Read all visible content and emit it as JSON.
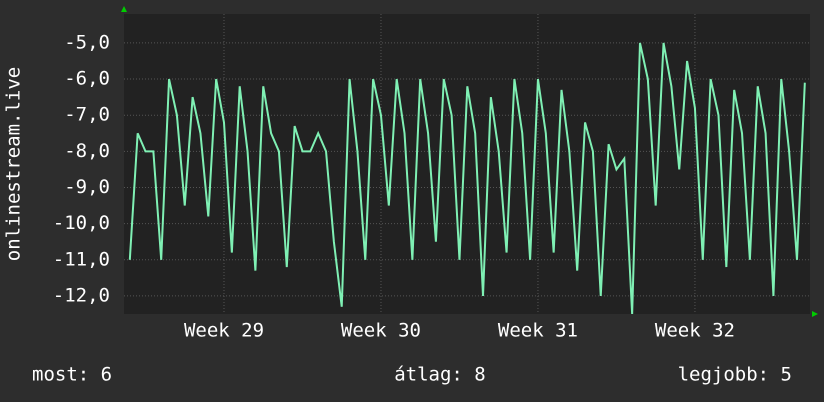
{
  "chart_data": {
    "type": "line",
    "ylabel": "onlinestream.live",
    "x": [
      28.4,
      28.45,
      28.5,
      28.55,
      28.6,
      28.65,
      28.7,
      28.75,
      28.8,
      28.85,
      28.9,
      28.95,
      29.0,
      29.05,
      29.1,
      29.15,
      29.2,
      29.25,
      29.3,
      29.35,
      29.4,
      29.45,
      29.5,
      29.55,
      29.6,
      29.65,
      29.7,
      29.75,
      29.8,
      29.85,
      29.9,
      29.95,
      30.0,
      30.05,
      30.1,
      30.15,
      30.2,
      30.25,
      30.3,
      30.35,
      30.4,
      30.45,
      30.5,
      30.55,
      30.6,
      30.65,
      30.7,
      30.75,
      30.8,
      30.85,
      30.9,
      30.95,
      31.0,
      31.05,
      31.1,
      31.15,
      31.2,
      31.25,
      31.3,
      31.35,
      31.4,
      31.45,
      31.5,
      31.55,
      31.6,
      31.65,
      31.7,
      31.75,
      31.8,
      31.85,
      31.9,
      31.95,
      32.0,
      32.05,
      32.1,
      32.15,
      32.2,
      32.25,
      32.3,
      32.35,
      32.4,
      32.45,
      32.5,
      32.55,
      32.6,
      32.65,
      32.7
    ],
    "series": [
      {
        "color": "#7ff0b4",
        "values": [
          -11,
          -7.5,
          -8,
          -8,
          -11,
          -6,
          -7,
          -9.5,
          -6.5,
          -7.5,
          -9.8,
          -6,
          -7.2,
          -10.8,
          -6.2,
          -8,
          -11.3,
          -6.2,
          -7.5,
          -8,
          -11.2,
          -7.3,
          -8,
          -8,
          -7.5,
          -8,
          -10.5,
          -12.3,
          -6,
          -8,
          -11,
          -6,
          -7,
          -9.5,
          -6,
          -7.5,
          -11,
          -6,
          -7.5,
          -10.5,
          -6,
          -7,
          -11,
          -6.2,
          -7.5,
          -12,
          -6.5,
          -8,
          -10.8,
          -6,
          -7.5,
          -11,
          -6,
          -7.5,
          -10.8,
          -6.3,
          -8,
          -11.3,
          -7.2,
          -8,
          -12,
          -7.8,
          -8.5,
          -8.2,
          -12.5,
          -5,
          -6,
          -9.5,
          -5,
          -6.2,
          -8.5,
          -5.5,
          -6.8,
          -11,
          -6,
          -7,
          -11.2,
          -6.3,
          -7.5,
          -11,
          -6.2,
          -7.5,
          -12,
          -6,
          -8,
          -11,
          -6.1
        ]
      }
    ],
    "xlim": [
      28.363,
      32.733
    ],
    "xticks": [
      {
        "value": 29,
        "label": "Week 29"
      },
      {
        "value": 30,
        "label": "Week 30"
      },
      {
        "value": 31,
        "label": "Week 31"
      },
      {
        "value": 32,
        "label": "Week 32"
      }
    ],
    "ylim": [
      -12.5,
      -4.2
    ],
    "yticks": [
      {
        "value": -5,
        "label": "-5,0"
      },
      {
        "value": -6,
        "label": "-6,0"
      },
      {
        "value": -7,
        "label": "-7,0"
      },
      {
        "value": -8,
        "label": "-8,0"
      },
      {
        "value": -9,
        "label": "-9,0"
      },
      {
        "value": -10,
        "label": "-10,0"
      },
      {
        "value": -11,
        "label": "-11,0"
      },
      {
        "value": -12,
        "label": "-12,0"
      }
    ],
    "grid": true,
    "footer": [
      "most: 6",
      "átlag: 8",
      "legjobb: 5"
    ]
  }
}
